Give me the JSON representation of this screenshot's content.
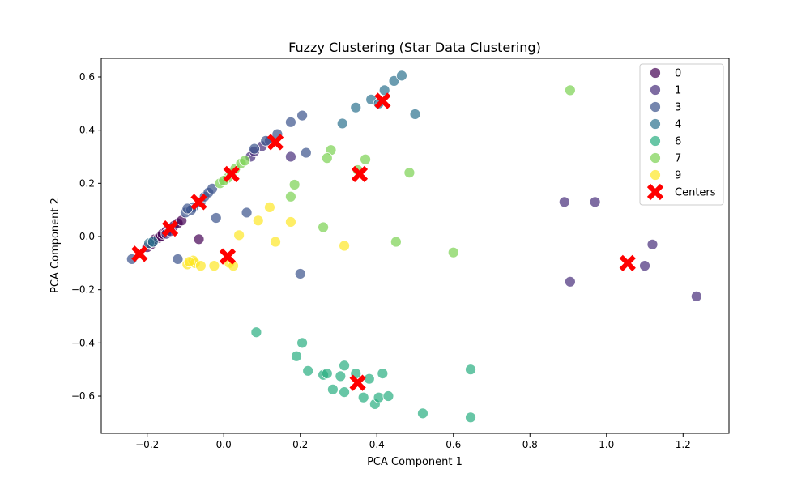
{
  "chart_data": {
    "type": "scatter",
    "title": "Fuzzy Clustering (Star Data Clustering)",
    "xlabel": "PCA Component 1",
    "ylabel": "PCA Component 2",
    "xlim": [
      -0.32,
      1.32
    ],
    "ylim": [
      -0.74,
      0.67
    ],
    "xticks": [
      -0.2,
      0.0,
      0.2,
      0.4,
      0.6,
      0.8,
      1.0,
      1.2
    ],
    "xtick_labels": [
      "−0.2",
      "0.0",
      "0.2",
      "0.4",
      "0.6",
      "0.8",
      "1.0",
      "1.2"
    ],
    "yticks": [
      -0.6,
      -0.4,
      -0.2,
      0.0,
      0.2,
      0.4,
      0.6
    ],
    "ytick_labels": [
      "−0.6",
      "−0.4",
      "−0.2",
      "0.0",
      "0.2",
      "0.4",
      "0.6"
    ],
    "grid": false,
    "legend_position": "top-right",
    "series": [
      {
        "name": "0",
        "color": "#440154",
        "points": [
          [
            -0.2,
            -0.04
          ],
          [
            -0.19,
            -0.03
          ],
          [
            -0.185,
            -0.02
          ],
          [
            -0.18,
            -0.01
          ],
          [
            -0.17,
            -0.005
          ],
          [
            -0.165,
            0.0
          ],
          [
            -0.16,
            0.01
          ],
          [
            -0.15,
            0.02
          ],
          [
            -0.14,
            0.025
          ],
          [
            -0.13,
            0.04
          ],
          [
            -0.12,
            0.05
          ],
          [
            -0.11,
            0.06
          ],
          [
            -0.065,
            -0.01
          ]
        ]
      },
      {
        "name": "1",
        "color": "#472d7b",
        "points": [
          [
            0.07,
            0.3
          ],
          [
            0.08,
            0.32
          ],
          [
            0.1,
            0.34
          ],
          [
            0.12,
            0.36
          ],
          [
            0.175,
            0.3
          ],
          [
            0.89,
            0.13
          ],
          [
            0.97,
            0.13
          ],
          [
            0.905,
            -0.17
          ],
          [
            1.1,
            -0.11
          ],
          [
            1.12,
            -0.03
          ],
          [
            1.235,
            -0.225
          ],
          [
            -0.15,
            0.01
          ],
          [
            -0.14,
            0.02
          ]
        ]
      },
      {
        "name": "3",
        "color": "#3b528b",
        "points": [
          [
            -0.24,
            -0.085
          ],
          [
            -0.12,
            -0.085
          ],
          [
            -0.02,
            0.07
          ],
          [
            0.06,
            0.09
          ],
          [
            0.2,
            -0.14
          ],
          [
            0.175,
            0.43
          ],
          [
            0.205,
            0.455
          ],
          [
            0.215,
            0.315
          ],
          [
            0.11,
            0.36
          ],
          [
            0.08,
            0.33
          ],
          [
            0.14,
            0.385
          ],
          [
            -0.1,
            0.09
          ],
          [
            -0.08,
            0.11
          ],
          [
            -0.06,
            0.13
          ],
          [
            -0.05,
            0.15
          ],
          [
            -0.04,
            0.165
          ],
          [
            -0.03,
            0.18
          ],
          [
            -0.085,
            0.1
          ],
          [
            -0.095,
            0.105
          ]
        ]
      },
      {
        "name": "4",
        "color": "#2c728e",
        "points": [
          [
            0.31,
            0.425
          ],
          [
            0.345,
            0.485
          ],
          [
            0.385,
            0.515
          ],
          [
            0.405,
            0.5
          ],
          [
            0.42,
            0.55
          ],
          [
            0.445,
            0.585
          ],
          [
            0.465,
            0.605
          ],
          [
            0.5,
            0.46
          ],
          [
            -0.195,
            -0.025
          ],
          [
            -0.185,
            -0.02
          ]
        ]
      },
      {
        "name": "6",
        "color": "#28ae80",
        "points": [
          [
            0.085,
            -0.36
          ],
          [
            0.205,
            -0.4
          ],
          [
            0.19,
            -0.45
          ],
          [
            0.22,
            -0.505
          ],
          [
            0.26,
            -0.52
          ],
          [
            0.27,
            -0.515
          ],
          [
            0.285,
            -0.575
          ],
          [
            0.305,
            -0.525
          ],
          [
            0.315,
            -0.485
          ],
          [
            0.315,
            -0.585
          ],
          [
            0.345,
            -0.515
          ],
          [
            0.365,
            -0.605
          ],
          [
            0.38,
            -0.535
          ],
          [
            0.395,
            -0.63
          ],
          [
            0.405,
            -0.605
          ],
          [
            0.415,
            -0.515
          ],
          [
            0.43,
            -0.6
          ],
          [
            0.52,
            -0.665
          ],
          [
            0.645,
            -0.5
          ],
          [
            0.645,
            -0.68
          ]
        ]
      },
      {
        "name": "7",
        "color": "#7ad151",
        "points": [
          [
            0.905,
            0.55
          ],
          [
            0.28,
            0.325
          ],
          [
            0.27,
            0.295
          ],
          [
            0.37,
            0.29
          ],
          [
            0.35,
            0.25
          ],
          [
            0.485,
            0.24
          ],
          [
            0.185,
            0.195
          ],
          [
            0.175,
            0.15
          ],
          [
            0.26,
            0.035
          ],
          [
            0.45,
            -0.02
          ],
          [
            0.6,
            -0.06
          ],
          [
            0.01,
            0.22
          ],
          [
            0.02,
            0.24
          ],
          [
            0.03,
            0.255
          ],
          [
            0.045,
            0.275
          ],
          [
            0.055,
            0.285
          ],
          [
            -0.01,
            0.2
          ],
          [
            0.0,
            0.21
          ]
        ]
      },
      {
        "name": "9",
        "color": "#fde725",
        "points": [
          [
            0.12,
            0.11
          ],
          [
            0.09,
            0.06
          ],
          [
            0.175,
            0.055
          ],
          [
            0.04,
            0.005
          ],
          [
            0.135,
            -0.02
          ],
          [
            0.315,
            -0.035
          ],
          [
            -0.095,
            -0.105
          ],
          [
            -0.08,
            -0.09
          ],
          [
            -0.075,
            -0.1
          ],
          [
            -0.06,
            -0.11
          ],
          [
            -0.025,
            -0.11
          ],
          [
            0.015,
            -0.1
          ],
          [
            0.025,
            -0.11
          ],
          [
            -0.09,
            -0.095
          ]
        ]
      }
    ],
    "centers": {
      "name": "Centers",
      "color": "#ff0000",
      "points": [
        [
          -0.22,
          -0.065
        ],
        [
          -0.14,
          0.03
        ],
        [
          -0.065,
          0.13
        ],
        [
          0.02,
          0.235
        ],
        [
          0.135,
          0.355
        ],
        [
          0.415,
          0.51
        ],
        [
          0.355,
          0.235
        ],
        [
          0.01,
          -0.075
        ],
        [
          0.35,
          -0.55
        ],
        [
          1.055,
          -0.1
        ]
      ]
    },
    "legend": [
      "0",
      "1",
      "3",
      "4",
      "6",
      "7",
      "9",
      "Centers"
    ]
  }
}
